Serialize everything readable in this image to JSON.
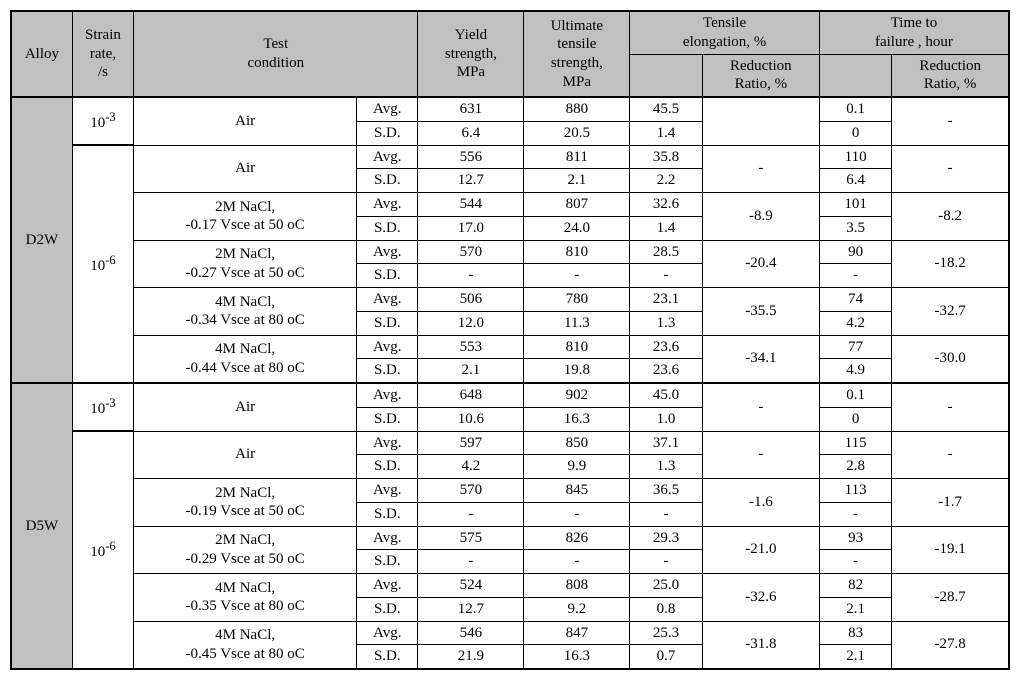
{
  "headers": {
    "alloy": "Alloy",
    "strain_rate": "Strain\nrate,\n/s",
    "test_condition": "Test\ncondition",
    "yield": "Yield\nstrength,\nMPa",
    "uts": "Ultimate\ntensile\nstrength,\nMPa",
    "elong": "Tensile\nelongation, %",
    "elong_rr": "Reduction\nRatio, %",
    "ttf": "Time to\nfailure , hour",
    "ttf_rr": "Reduction\nRatio, %"
  },
  "stat_labels": {
    "avg": "Avg.",
    "sd": "S.D."
  },
  "rates": {
    "e3": "10⁻³",
    "e6": "10⁻⁶"
  },
  "alloys": [
    {
      "name": "D2W",
      "rows": [
        {
          "rate": "e3",
          "cond": [
            "Air"
          ],
          "ys": [
            "631",
            "6.4"
          ],
          "uts": [
            "880",
            "20.5"
          ],
          "el": [
            "45.5",
            "1.4"
          ],
          "elr": "",
          "tf": [
            "0.1",
            "0"
          ],
          "tfr": "-"
        },
        {
          "rate": "e6",
          "cond": [
            "Air"
          ],
          "ys": [
            "556",
            "12.7"
          ],
          "uts": [
            "811",
            "2.1"
          ],
          "el": [
            "35.8",
            "2.2"
          ],
          "elr": "-",
          "tf": [
            "110",
            "6.4"
          ],
          "tfr": "-"
        },
        {
          "rate": "e6",
          "cond": [
            "2M NaCl,",
            "-0.17 Vsce at 50 oC"
          ],
          "ys": [
            "544",
            "17.0"
          ],
          "uts": [
            "807",
            "24.0"
          ],
          "el": [
            "32.6",
            "1.4"
          ],
          "elr": "-8.9",
          "tf": [
            "101",
            "3.5"
          ],
          "tfr": "-8.2"
        },
        {
          "rate": "e6",
          "cond": [
            "2M NaCl,",
            "-0.27 Vsce at 50 oC"
          ],
          "ys": [
            "570",
            "-"
          ],
          "uts": [
            "810",
            "-"
          ],
          "el": [
            "28.5",
            "-"
          ],
          "elr": "-20.4",
          "tf": [
            "90",
            "-"
          ],
          "tfr": "-18.2"
        },
        {
          "rate": "e6",
          "cond": [
            "4M NaCl,",
            "-0.34 Vsce at 80 oC"
          ],
          "ys": [
            "506",
            "12.0"
          ],
          "uts": [
            "780",
            "11.3"
          ],
          "el": [
            "23.1",
            "1.3"
          ],
          "elr": "-35.5",
          "tf": [
            "74",
            "4.2"
          ],
          "tfr": "-32.7"
        },
        {
          "rate": "e6",
          "cond": [
            "4M NaCl,",
            "-0.44 Vsce at 80 oC"
          ],
          "ys": [
            "553",
            "2.1"
          ],
          "uts": [
            "810",
            "19.8"
          ],
          "el": [
            "23.6",
            "23.6"
          ],
          "elr": "-34.1",
          "tf": [
            "77",
            "4.9"
          ],
          "tfr": "-30.0"
        }
      ]
    },
    {
      "name": "D5W",
      "rows": [
        {
          "rate": "e3",
          "cond": [
            "Air"
          ],
          "ys": [
            "648",
            "10.6"
          ],
          "uts": [
            "902",
            "16.3"
          ],
          "el": [
            "45.0",
            "1.0"
          ],
          "elr": "-",
          "tf": [
            "0.1",
            "0"
          ],
          "tfr": "-"
        },
        {
          "rate": "e6",
          "cond": [
            "Air"
          ],
          "ys": [
            "597",
            "4.2"
          ],
          "uts": [
            "850",
            "9.9"
          ],
          "el": [
            "37.1",
            "1.3"
          ],
          "elr": "-",
          "tf": [
            "115",
            "2.8"
          ],
          "tfr": "-"
        },
        {
          "rate": "e6",
          "cond": [
            "2M NaCl,",
            "-0.19 Vsce at 50 oC"
          ],
          "ys": [
            "570",
            "-"
          ],
          "uts": [
            "845",
            "-"
          ],
          "el": [
            "36.5",
            "-"
          ],
          "elr": "-1.6",
          "tf": [
            "113",
            "-"
          ],
          "tfr": "-1.7"
        },
        {
          "rate": "e6",
          "cond": [
            "2M NaCl,",
            "-0.29 Vsce at 50 oC"
          ],
          "ys": [
            "575",
            "-"
          ],
          "uts": [
            "826",
            "-"
          ],
          "el": [
            "29.3",
            "-"
          ],
          "elr": "-21.0",
          "tf": [
            "93",
            "-"
          ],
          "tfr": "-19.1"
        },
        {
          "rate": "e6",
          "cond": [
            "4M NaCl,",
            "-0.35 Vsce at 80 oC"
          ],
          "ys": [
            "524",
            "12.7"
          ],
          "uts": [
            "808",
            "9.2"
          ],
          "el": [
            "25.0",
            "0.8"
          ],
          "elr": "-32.6",
          "tf": [
            "82",
            "2.1"
          ],
          "tfr": "-28.7"
        },
        {
          "rate": "e6",
          "cond": [
            "4M NaCl,",
            "-0.45 Vsce at 80 oC"
          ],
          "ys": [
            "546",
            "21.9"
          ],
          "uts": [
            "847",
            "16.3"
          ],
          "el": [
            "25.3",
            "0.7"
          ],
          "elr": "-31.8",
          "tf": [
            "83",
            "2.1"
          ],
          "tfr": "-27.8"
        }
      ]
    }
  ],
  "colors": {
    "header_bg": "#c0c0c0",
    "border": "#000000",
    "text": "#000000",
    "page_bg": "#ffffff"
  },
  "typography": {
    "font_family": "Times New Roman",
    "font_size_pt": 11
  }
}
